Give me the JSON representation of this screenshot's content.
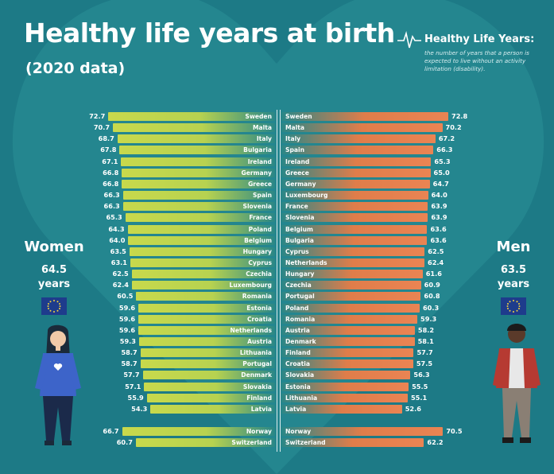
{
  "header": {
    "title": "Healthy life years at birth",
    "subtitle": "(2020 data)"
  },
  "legend": {
    "heading": "Healthy Life Years:",
    "description": "the number of years that a person is expected to live without an activity limitation (disability)."
  },
  "women": {
    "label": "Women",
    "value": "64.5",
    "unit": "years",
    "icon": "eu-flag-icon"
  },
  "men": {
    "label": "Men",
    "value": "63.5",
    "unit": "years",
    "icon": "eu-flag-icon"
  },
  "colors": {
    "background": "#1d7a86",
    "women_bar": "#c8d94c",
    "men_bar": "#ea8453",
    "text": "#ffffff"
  },
  "chart_data": [
    {
      "type": "bar",
      "title": "",
      "xlabel": "",
      "ylabel": "",
      "orientation": "horizontal",
      "series": [
        {
          "name": "Women",
          "categories": [
            "Sweden",
            "Malta",
            "Italy",
            "Bulgaria",
            "Ireland",
            "Germany",
            "Greece",
            "Spain",
            "Slovenia",
            "France",
            "Poland",
            "Belgium",
            "Hungary",
            "Cyprus",
            "Czechia",
            "Luxembourg",
            "Romania",
            "Estonia",
            "Croatia",
            "Netherlands",
            "Austria",
            "Lithuania",
            "Portugal",
            "Denmark",
            "Slovakia",
            "Finland",
            "Latvia",
            "Norway",
            "Switzerland"
          ],
          "values": [
            72.7,
            70.7,
            68.7,
            67.8,
            67.1,
            66.8,
            66.8,
            66.3,
            66.3,
            65.3,
            64.3,
            64.0,
            63.5,
            63.1,
            62.5,
            62.4,
            60.5,
            59.6,
            59.6,
            59.6,
            59.3,
            58.7,
            58.7,
            57.7,
            57.1,
            55.9,
            54.3,
            66.7,
            60.7
          ],
          "labels": [
            "72.7",
            "70.7",
            "68.7",
            "67.8",
            "67.1",
            "66.8",
            "66.8",
            "66.3",
            "66.3",
            "65.3",
            "64.3",
            "64.0",
            "63.5",
            "63.1",
            "62.5",
            "62.4",
            "60.5",
            "59.6",
            "59.6",
            "59.6",
            "59.3",
            "58.7",
            "58.7",
            "57.7",
            "57.1",
            "55.9",
            "54.3",
            "66.7",
            "60.7"
          ]
        }
      ]
    },
    {
      "type": "bar",
      "title": "",
      "xlabel": "",
      "ylabel": "",
      "orientation": "horizontal",
      "series": [
        {
          "name": "Men",
          "categories": [
            "Sweden",
            "Malta",
            "Italy",
            "Spain",
            "Ireland",
            "Greece",
            "Germany",
            "Luxembourg",
            "France",
            "Slovenia",
            "Belgium",
            "Bulgaria",
            "Cyprus",
            "Netherlands",
            "Hungary",
            "Czechia",
            "Portugal",
            "Poland",
            "Romania",
            "Austria",
            "Denmark",
            "Finland",
            "Croatia",
            "Slovakia",
            "Estonia",
            "Lithuania",
            "Latvia",
            "Norway",
            "Switzerland"
          ],
          "values": [
            72.8,
            70.2,
            67.2,
            66.3,
            65.3,
            65.0,
            64.7,
            64.0,
            63.9,
            63.9,
            63.6,
            63.6,
            62.5,
            62.4,
            61.6,
            60.9,
            60.8,
            60.3,
            59.3,
            58.2,
            58.1,
            57.7,
            57.5,
            56.3,
            55.5,
            55.1,
            52.6,
            70.5,
            62.2
          ],
          "labels": [
            "72.8",
            "70.2",
            "67.2",
            "66.3",
            "65.3",
            "65.0",
            "64.7",
            "64.0",
            "63.9",
            "63.9",
            "63.6",
            "63.6",
            "62.5",
            "62.4",
            "61.6",
            "60.9",
            "60.8",
            "60.3",
            "59.3",
            "58.2",
            "58.1",
            "57.7",
            "57.5",
            "56.3",
            "55.5",
            "55.1",
            "52.6",
            "70.5",
            "62.2"
          ]
        }
      ]
    }
  ]
}
